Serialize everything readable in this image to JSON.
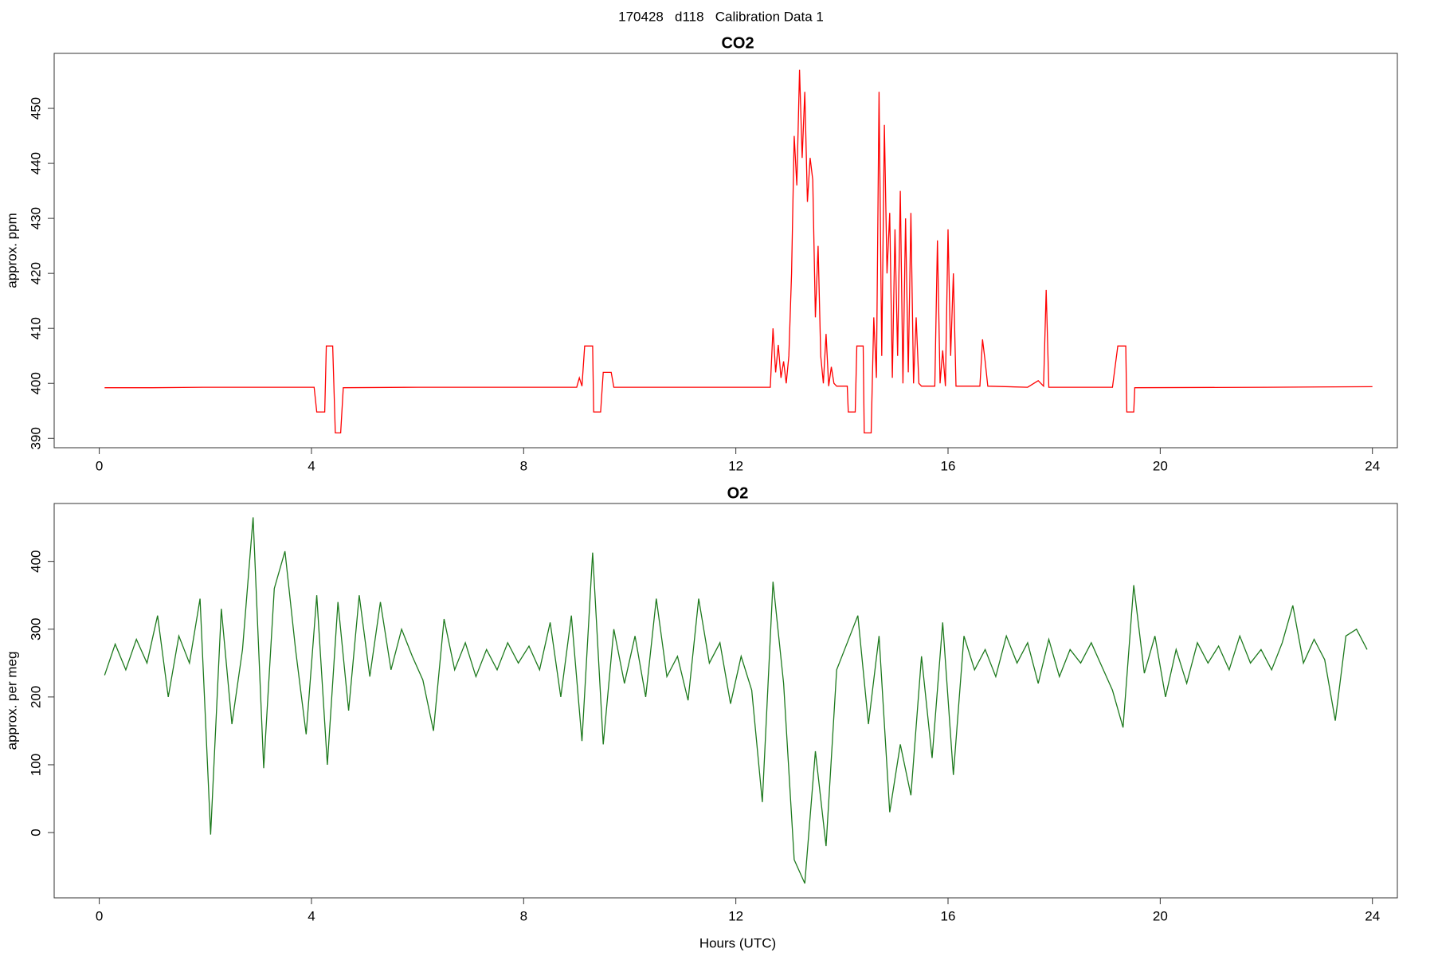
{
  "title": "170428   d118   Calibration Data 1",
  "chart_data": [
    {
      "type": "line",
      "title": "CO2",
      "ylabel": "approx. ppm",
      "x": [
        0.1,
        1,
        2,
        3,
        4.05,
        4.1,
        4.25,
        4.28,
        4.4,
        4.45,
        4.55,
        4.6,
        6,
        8,
        9,
        9.05,
        9.1,
        9.15,
        9.3,
        9.32,
        9.45,
        9.5,
        9.65,
        9.7,
        11,
        12.65,
        12.7,
        12.75,
        12.8,
        12.85,
        12.9,
        12.95,
        13.0,
        13.05,
        13.1,
        13.15,
        13.2,
        13.25,
        13.3,
        13.35,
        13.4,
        13.45,
        13.5,
        13.55,
        13.6,
        13.65,
        13.7,
        13.75,
        13.8,
        13.85,
        13.9,
        14.1,
        14.12,
        14.25,
        14.28,
        14.4,
        14.42,
        14.55,
        14.6,
        14.65,
        14.7,
        14.75,
        14.8,
        14.85,
        14.9,
        14.95,
        15.0,
        15.05,
        15.1,
        15.15,
        15.2,
        15.25,
        15.3,
        15.35,
        15.4,
        15.45,
        15.5,
        15.75,
        15.8,
        15.85,
        15.9,
        15.95,
        16.0,
        16.05,
        16.1,
        16.15,
        16.6,
        16.65,
        16.7,
        16.75,
        17.5,
        17.7,
        17.8,
        17.85,
        17.9,
        19.1,
        19.2,
        19.35,
        19.37,
        19.5,
        19.52,
        22,
        24
      ],
      "series": [
        {
          "color": "#ff0000",
          "values": [
            399.2,
            399.2,
            399.3,
            399.3,
            399.3,
            394.8,
            394.8,
            406.8,
            406.8,
            391,
            391,
            399.2,
            399.3,
            399.3,
            399.3,
            401,
            399.5,
            406.8,
            406.8,
            394.8,
            394.8,
            402,
            402,
            399.3,
            399.3,
            399.3,
            410,
            402,
            407,
            401,
            404,
            400,
            405,
            420,
            445,
            436,
            457,
            441,
            453,
            433,
            441,
            437,
            412,
            425,
            405,
            400,
            409,
            399.5,
            403,
            400,
            399.5,
            399.5,
            394.8,
            394.8,
            406.8,
            406.8,
            391,
            391,
            412,
            401,
            453,
            405,
            447,
            420,
            431,
            401,
            428,
            405,
            435,
            400,
            430,
            402,
            431,
            400,
            412,
            400,
            399.5,
            399.5,
            426,
            400,
            406,
            399.5,
            428,
            405,
            420,
            399.5,
            399.5,
            408,
            404,
            399.5,
            399.3,
            400.5,
            399.5,
            417,
            399.3,
            399.3,
            406.8,
            406.8,
            394.8,
            394.8,
            399.2,
            399.3,
            399.4
          ]
        }
      ],
      "xlim": [
        -0.85,
        24.47
      ],
      "xticks": [
        0,
        4,
        8,
        12,
        16,
        20,
        24
      ],
      "ylim": [
        388.3,
        460.0
      ],
      "yticks": [
        390,
        400,
        410,
        420,
        430,
        440,
        450
      ]
    },
    {
      "type": "line",
      "title": "O2",
      "ylabel": "approx. per meg",
      "xlabel": "Hours (UTC)",
      "x": [
        0.1,
        0.3,
        0.5,
        0.7,
        0.9,
        1.1,
        1.3,
        1.5,
        1.7,
        1.9,
        2.1,
        2.3,
        2.5,
        2.7,
        2.9,
        3.1,
        3.3,
        3.5,
        3.7,
        3.9,
        4.1,
        4.3,
        4.5,
        4.7,
        4.9,
        5.1,
        5.3,
        5.5,
        5.7,
        5.9,
        6.1,
        6.3,
        6.5,
        6.7,
        6.9,
        7.1,
        7.3,
        7.5,
        7.7,
        7.9,
        8.1,
        8.3,
        8.5,
        8.7,
        8.9,
        9.1,
        9.3,
        9.5,
        9.7,
        9.9,
        10.1,
        10.3,
        10.5,
        10.7,
        10.9,
        11.1,
        11.3,
        11.5,
        11.7,
        11.9,
        12.1,
        12.3,
        12.5,
        12.7,
        12.9,
        13.1,
        13.3,
        13.5,
        13.7,
        13.9,
        14.1,
        14.3,
        14.5,
        14.7,
        14.9,
        15.1,
        15.3,
        15.5,
        15.7,
        15.9,
        16.1,
        16.3,
        16.5,
        16.7,
        16.9,
        17.1,
        17.3,
        17.5,
        17.7,
        17.9,
        18.1,
        18.3,
        18.5,
        18.7,
        18.9,
        19.1,
        19.3,
        19.5,
        19.7,
        19.9,
        20.1,
        20.3,
        20.5,
        20.7,
        20.9,
        21.1,
        21.3,
        21.5,
        21.7,
        21.9,
        22.1,
        22.3,
        22.5,
        22.7,
        22.9,
        23.1,
        23.3,
        23.5,
        23.7,
        23.9
      ],
      "series": [
        {
          "color": "#1e7a1e",
          "values": [
            232,
            278,
            240,
            285,
            250,
            320,
            200,
            290,
            250,
            345,
            -3,
            330,
            160,
            270,
            465,
            95,
            360,
            415,
            270,
            145,
            350,
            100,
            340,
            180,
            350,
            230,
            340,
            240,
            300,
            260,
            225,
            150,
            315,
            240,
            280,
            230,
            270,
            240,
            280,
            250,
            275,
            240,
            310,
            200,
            320,
            135,
            413,
            130,
            300,
            220,
            290,
            200,
            345,
            230,
            260,
            195,
            345,
            250,
            280,
            190,
            260,
            210,
            45,
            370,
            220,
            -40,
            -75,
            120,
            -20,
            240,
            280,
            320,
            160,
            290,
            30,
            130,
            55,
            260,
            110,
            310,
            85,
            290,
            240,
            270,
            230,
            290,
            250,
            280,
            220,
            285,
            230,
            270,
            250,
            280,
            245,
            210,
            155,
            365,
            235,
            290,
            200,
            270,
            220,
            280,
            250,
            275,
            240,
            290,
            250,
            270,
            240,
            280,
            335,
            250,
            285,
            255,
            165,
            290,
            300,
            270
          ]
        }
      ],
      "xlim": [
        -0.85,
        24.47
      ],
      "xticks": [
        0,
        4,
        8,
        12,
        16,
        20,
        24
      ],
      "ylim": [
        -96.3,
        485.4
      ],
      "yticks": [
        0,
        100,
        200,
        300,
        400
      ]
    }
  ]
}
